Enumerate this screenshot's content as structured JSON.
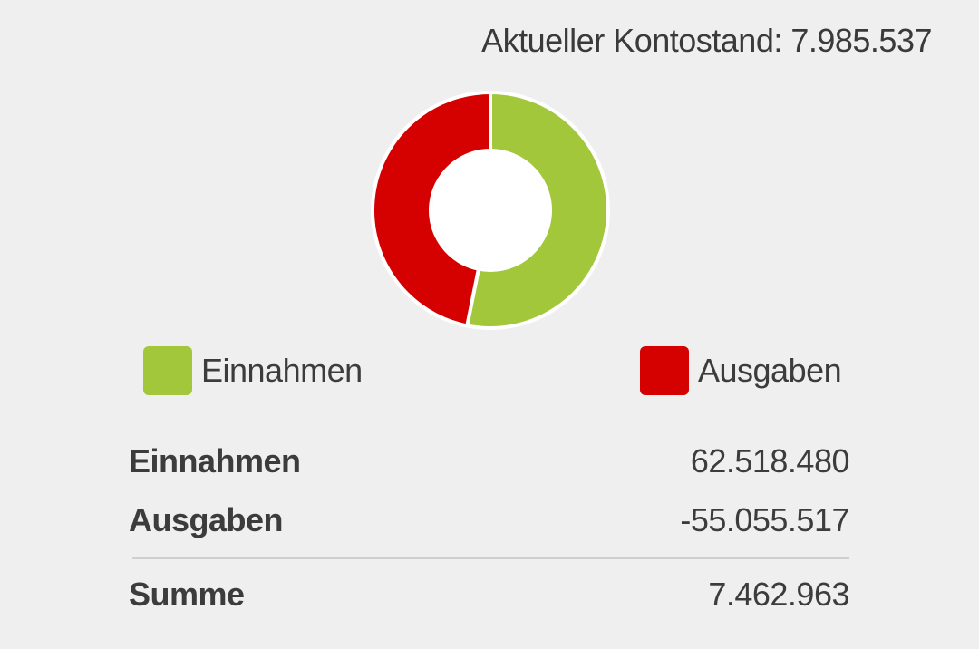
{
  "header": {
    "balance_text": "Aktueller Kontostand: 7.985.537"
  },
  "chart_data": {
    "type": "pie",
    "title": "",
    "categories": [
      "Einnahmen",
      "Ausgaben"
    ],
    "values": [
      62518480,
      55055517
    ],
    "colors": [
      "#a2c73b",
      "#d50000"
    ],
    "donut": true,
    "legend_position": "bottom"
  },
  "legend": {
    "items": [
      {
        "label": "Einnahmen",
        "color": "#a2c73b"
      },
      {
        "label": "Ausgaben",
        "color": "#d50000"
      }
    ]
  },
  "summary": {
    "rows": [
      {
        "label": "Einnahmen",
        "value": "62.518.480"
      },
      {
        "label": "Ausgaben",
        "value": "-55.055.517"
      }
    ],
    "total": {
      "label": "Summe",
      "value": "7.462.963"
    }
  }
}
